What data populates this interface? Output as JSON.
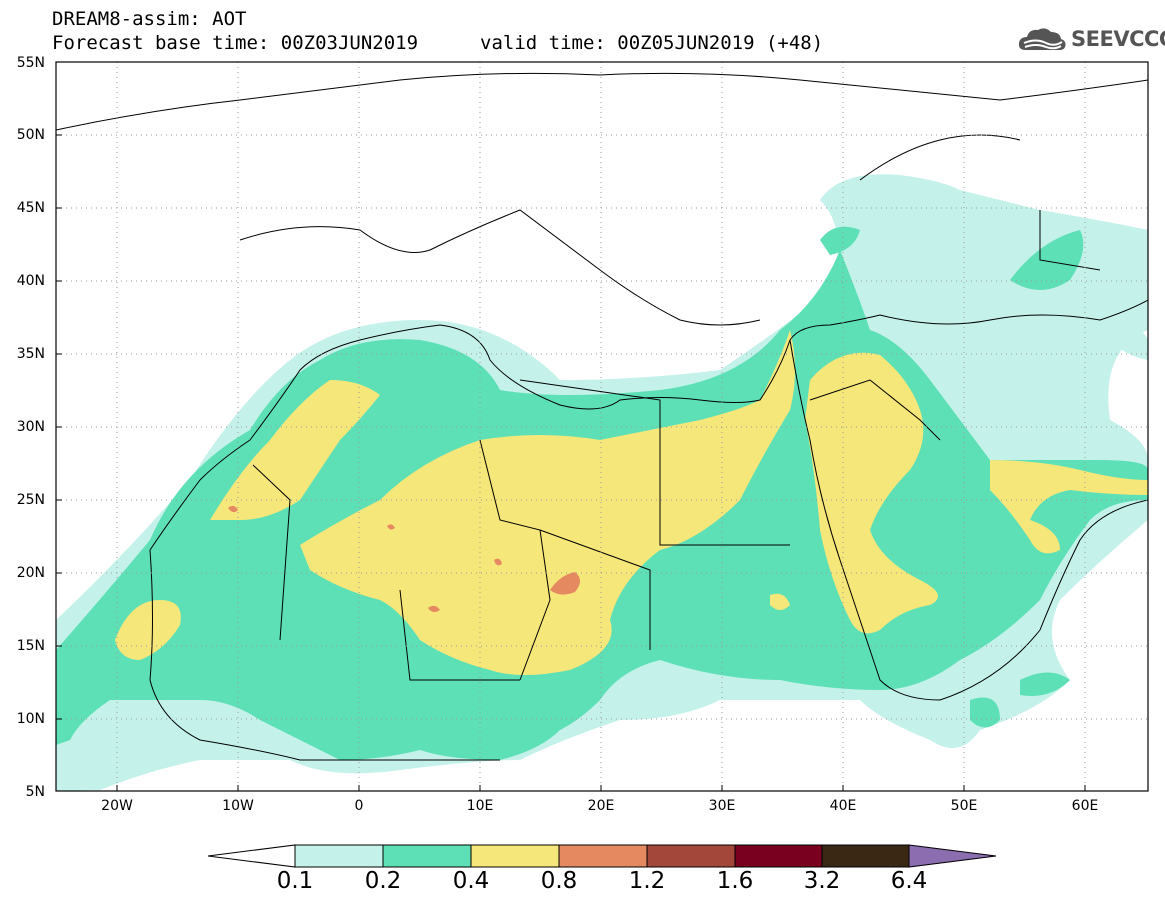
{
  "header": {
    "title": "DREAM8-assim: AOT",
    "base_time": "Forecast base time: 00Z03JUN2019",
    "valid_time": "valid time: 00Z05JUN2019 (+48)"
  },
  "logo": {
    "text": "SEEVCCC",
    "icon": "cloud-icon"
  },
  "axes": {
    "lat_labels": [
      "55N",
      "50N",
      "45N",
      "40N",
      "35N",
      "30N",
      "25N",
      "20N",
      "15N",
      "10N",
      "5N"
    ],
    "lon_labels": [
      "20W",
      "10W",
      "0",
      "10E",
      "20E",
      "30E",
      "40E",
      "50E",
      "60E"
    ],
    "lat_range": [
      5,
      55
    ],
    "lon_range": [
      -25,
      65
    ],
    "grid": "dotted"
  },
  "colorbar": {
    "levels": [
      "0.1",
      "0.2",
      "0.4",
      "0.8",
      "1.2",
      "1.6",
      "3.2",
      "6.4"
    ],
    "colors": [
      "#ffffff",
      "#c4f2ea",
      "#5ee0b6",
      "#f6e77a",
      "#e58a60",
      "#a3473a",
      "#7a0020",
      "#3a2714",
      "#8b6db0"
    ]
  }
}
